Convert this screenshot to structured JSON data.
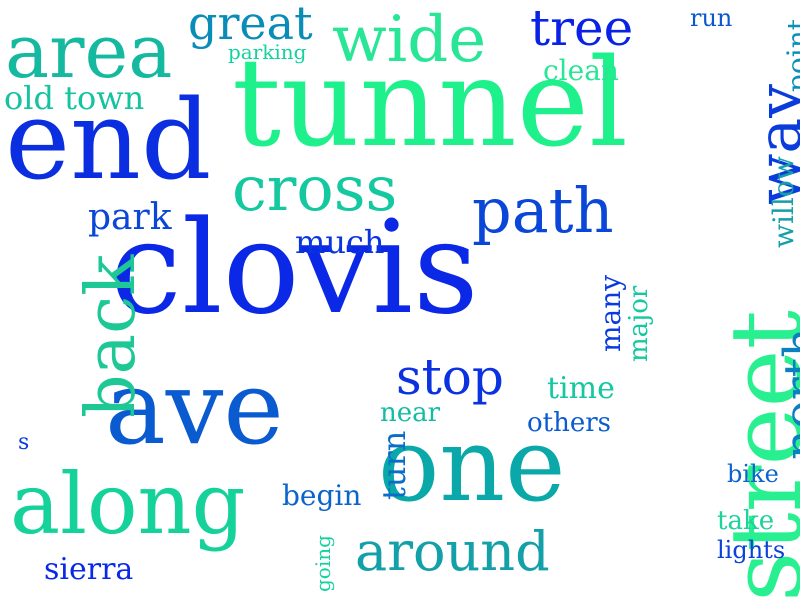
{
  "words": [
    {
      "key": "clovis",
      "text": "clovis",
      "color": "#0a28e6",
      "vertical": false
    },
    {
      "key": "tunnel",
      "text": "tunnel",
      "color": "#1ef08c",
      "vertical": false
    },
    {
      "key": "end",
      "text": "end",
      "color": "#0a2ee0",
      "vertical": false
    },
    {
      "key": "ave",
      "text": "ave",
      "color": "#0a5ad0",
      "vertical": false
    },
    {
      "key": "one",
      "text": "one",
      "color": "#0aa8a8",
      "vertical": false
    },
    {
      "key": "street",
      "text": "street",
      "color": "#28f090",
      "vertical": true
    },
    {
      "key": "along",
      "text": "along",
      "color": "#14d29a",
      "vertical": false
    },
    {
      "key": "area",
      "text": "area",
      "color": "#14b9a0",
      "vertical": false
    },
    {
      "key": "wide",
      "text": "wide",
      "color": "#28e696",
      "vertical": false
    },
    {
      "key": "cross",
      "text": "cross",
      "color": "#14c8a0",
      "vertical": false
    },
    {
      "key": "path",
      "text": "path",
      "color": "#0a46d8",
      "vertical": false
    },
    {
      "key": "back",
      "text": "back",
      "color": "#1ec896",
      "vertical": true
    },
    {
      "key": "way",
      "text": "way",
      "color": "#0a3cdc",
      "vertical": true
    },
    {
      "key": "around",
      "text": "around",
      "color": "#14a0a8",
      "vertical": false
    },
    {
      "key": "stop",
      "text": "stop",
      "color": "#0a32e0",
      "vertical": false
    },
    {
      "key": "north",
      "text": "north",
      "color": "#0a80c0",
      "vertical": true
    },
    {
      "key": "tree",
      "text": "tree",
      "color": "#0a22e6",
      "vertical": false
    },
    {
      "key": "great",
      "text": "great",
      "color": "#0a8cb8",
      "vertical": false
    },
    {
      "key": "old_town",
      "text": "old town",
      "color": "#14c3a0",
      "vertical": false
    },
    {
      "key": "park",
      "text": "park",
      "color": "#0a46d8",
      "vertical": false
    },
    {
      "key": "much",
      "text": "much",
      "color": "#0a34de",
      "vertical": false
    },
    {
      "key": "sierra",
      "text": "sierra",
      "color": "#0a28e6",
      "vertical": false
    },
    {
      "key": "begin",
      "text": "begin",
      "color": "#0a64cc",
      "vertical": false
    },
    {
      "key": "turn",
      "text": "turn",
      "color": "#0a6ec8",
      "vertical": true
    },
    {
      "key": "near",
      "text": "near",
      "color": "#14bca4",
      "vertical": false
    },
    {
      "key": "time",
      "text": "time",
      "color": "#14c8a0",
      "vertical": false
    },
    {
      "key": "others",
      "text": "others",
      "color": "#0a5ad0",
      "vertical": false
    },
    {
      "key": "many",
      "text": "many",
      "color": "#0a3ae0",
      "vertical": true
    },
    {
      "key": "major",
      "text": "major",
      "color": "#14c8a0",
      "vertical": true
    },
    {
      "key": "willow",
      "text": "willow",
      "color": "#14a0a8",
      "vertical": true
    },
    {
      "key": "point",
      "text": "point",
      "color": "#0a90b8",
      "vertical": true
    },
    {
      "key": "run",
      "text": "run",
      "color": "#0a58d0",
      "vertical": false
    },
    {
      "key": "clean",
      "text": "clean",
      "color": "#28e696",
      "vertical": false
    },
    {
      "key": "parking",
      "text": "parking",
      "color": "#14d2a0",
      "vertical": false
    },
    {
      "key": "bike",
      "text": "bike",
      "color": "#0a64cc",
      "vertical": false
    },
    {
      "key": "take",
      "text": "take",
      "color": "#1ed29a",
      "vertical": false
    },
    {
      "key": "lights",
      "text": "lights",
      "color": "#0a40dc",
      "vertical": false
    },
    {
      "key": "going",
      "text": "going",
      "color": "#14d2a0",
      "vertical": true
    },
    {
      "key": "s",
      "text": "s",
      "color": "#0a3ae0",
      "vertical": false
    }
  ]
}
